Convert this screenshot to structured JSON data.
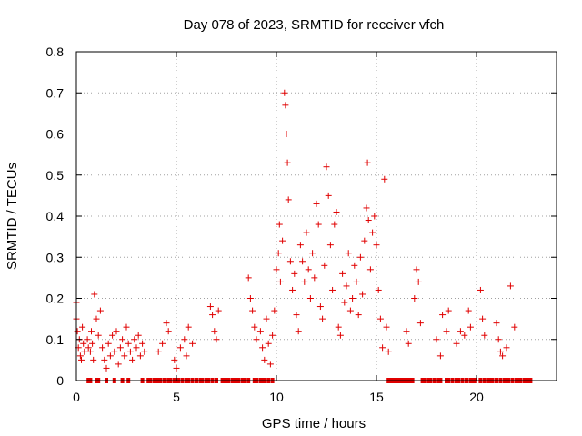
{
  "chart_data": {
    "type": "scatter",
    "title": "Day 078 of 2023, SRMTID for receiver vfch",
    "xlabel": "GPS time / hours",
    "ylabel": "SRMTID / TECUs",
    "xlim": [
      0,
      24
    ],
    "ylim": [
      0,
      0.8
    ],
    "xticks": [
      0,
      5,
      10,
      15,
      20
    ],
    "xtick_labels": [
      "0",
      "5",
      "10",
      "15",
      "20"
    ],
    "yticks": [
      0,
      0.1,
      0.2,
      0.3,
      0.4,
      0.5,
      0.6,
      0.7,
      0.8
    ],
    "ytick_labels": [
      "0",
      "0.1",
      "0.2",
      "0.3",
      "0.4",
      "0.5",
      "0.6",
      "0.7",
      "0.8"
    ],
    "grid": true,
    "marker": "+",
    "color": "#e00000",
    "series": [
      {
        "name": "SRMTID",
        "points": [
          [
            0.0,
            0.19
          ],
          [
            0.0,
            0.15
          ],
          [
            0.05,
            0.12
          ],
          [
            0.1,
            0.08
          ],
          [
            0.15,
            0.1
          ],
          [
            0.2,
            0.06
          ],
          [
            0.25,
            0.05
          ],
          [
            0.3,
            0.13
          ],
          [
            0.35,
            0.09
          ],
          [
            0.4,
            0.07
          ],
          [
            0.55,
            0.1
          ],
          [
            0.6,
            0.08
          ],
          [
            0.7,
            0.07
          ],
          [
            0.75,
            0.12
          ],
          [
            0.8,
            0.09
          ],
          [
            0.85,
            0.05
          ],
          [
            0.9,
            0.21
          ],
          [
            1.0,
            0.15
          ],
          [
            1.1,
            0.11
          ],
          [
            1.2,
            0.17
          ],
          [
            1.3,
            0.08
          ],
          [
            1.4,
            0.05
          ],
          [
            1.5,
            0.03
          ],
          [
            1.6,
            0.09
          ],
          [
            1.7,
            0.06
          ],
          [
            1.8,
            0.11
          ],
          [
            1.9,
            0.07
          ],
          [
            2.0,
            0.12
          ],
          [
            2.1,
            0.04
          ],
          [
            2.2,
            0.08
          ],
          [
            2.3,
            0.1
          ],
          [
            2.4,
            0.06
          ],
          [
            2.5,
            0.13
          ],
          [
            2.6,
            0.09
          ],
          [
            2.7,
            0.07
          ],
          [
            2.8,
            0.05
          ],
          [
            2.9,
            0.1
          ],
          [
            3.0,
            0.08
          ],
          [
            3.1,
            0.11
          ],
          [
            3.2,
            0.06
          ],
          [
            3.3,
            0.09
          ],
          [
            3.4,
            0.07
          ],
          [
            4.1,
            0.07
          ],
          [
            4.3,
            0.09
          ],
          [
            4.5,
            0.14
          ],
          [
            4.6,
            0.12
          ],
          [
            4.9,
            0.05
          ],
          [
            5.0,
            0.03
          ],
          [
            5.2,
            0.08
          ],
          [
            5.4,
            0.1
          ],
          [
            5.5,
            0.06
          ],
          [
            5.6,
            0.13
          ],
          [
            5.8,
            0.09
          ],
          [
            6.7,
            0.18
          ],
          [
            6.8,
            0.16
          ],
          [
            6.9,
            0.12
          ],
          [
            7.0,
            0.1
          ],
          [
            7.1,
            0.17
          ],
          [
            8.6,
            0.25
          ],
          [
            8.7,
            0.2
          ],
          [
            8.8,
            0.17
          ],
          [
            8.9,
            0.13
          ],
          [
            9.0,
            0.1
          ],
          [
            9.2,
            0.12
          ],
          [
            9.3,
            0.08
          ],
          [
            9.4,
            0.05
          ],
          [
            9.5,
            0.15
          ],
          [
            9.6,
            0.09
          ],
          [
            9.7,
            0.04
          ],
          [
            9.8,
            0.11
          ],
          [
            9.9,
            0.17
          ],
          [
            10.0,
            0.27
          ],
          [
            10.1,
            0.31
          ],
          [
            10.15,
            0.38
          ],
          [
            10.2,
            0.24
          ],
          [
            10.3,
            0.34
          ],
          [
            10.4,
            0.7
          ],
          [
            10.45,
            0.67
          ],
          [
            10.5,
            0.6
          ],
          [
            10.55,
            0.53
          ],
          [
            10.6,
            0.44
          ],
          [
            10.7,
            0.29
          ],
          [
            10.8,
            0.22
          ],
          [
            10.9,
            0.26
          ],
          [
            11.0,
            0.16
          ],
          [
            11.1,
            0.12
          ],
          [
            11.2,
            0.33
          ],
          [
            11.3,
            0.29
          ],
          [
            11.4,
            0.24
          ],
          [
            11.5,
            0.36
          ],
          [
            11.6,
            0.27
          ],
          [
            11.7,
            0.2
          ],
          [
            11.8,
            0.31
          ],
          [
            11.9,
            0.25
          ],
          [
            12.0,
            0.43
          ],
          [
            12.1,
            0.38
          ],
          [
            12.2,
            0.18
          ],
          [
            12.3,
            0.15
          ],
          [
            12.4,
            0.28
          ],
          [
            12.5,
            0.52
          ],
          [
            12.6,
            0.45
          ],
          [
            12.7,
            0.33
          ],
          [
            12.8,
            0.22
          ],
          [
            12.9,
            0.38
          ],
          [
            13.0,
            0.41
          ],
          [
            13.1,
            0.13
          ],
          [
            13.2,
            0.11
          ],
          [
            13.3,
            0.26
          ],
          [
            13.4,
            0.19
          ],
          [
            13.5,
            0.23
          ],
          [
            13.6,
            0.31
          ],
          [
            13.7,
            0.17
          ],
          [
            13.8,
            0.2
          ],
          [
            13.9,
            0.28
          ],
          [
            14.0,
            0.24
          ],
          [
            14.1,
            0.16
          ],
          [
            14.2,
            0.3
          ],
          [
            14.3,
            0.21
          ],
          [
            14.4,
            0.34
          ],
          [
            14.5,
            0.42
          ],
          [
            14.55,
            0.53
          ],
          [
            14.6,
            0.39
          ],
          [
            14.7,
            0.27
          ],
          [
            14.8,
            0.36
          ],
          [
            14.9,
            0.4
          ],
          [
            15.0,
            0.33
          ],
          [
            15.1,
            0.22
          ],
          [
            15.2,
            0.15
          ],
          [
            15.3,
            0.08
          ],
          [
            15.4,
            0.49
          ],
          [
            15.5,
            0.13
          ],
          [
            15.6,
            0.07
          ],
          [
            16.5,
            0.12
          ],
          [
            16.6,
            0.09
          ],
          [
            16.9,
            0.2
          ],
          [
            17.0,
            0.27
          ],
          [
            17.1,
            0.24
          ],
          [
            17.2,
            0.14
          ],
          [
            18.0,
            0.1
          ],
          [
            18.2,
            0.06
          ],
          [
            18.3,
            0.16
          ],
          [
            18.5,
            0.12
          ],
          [
            18.6,
            0.17
          ],
          [
            19.0,
            0.09
          ],
          [
            19.2,
            0.12
          ],
          [
            19.4,
            0.11
          ],
          [
            19.6,
            0.17
          ],
          [
            19.7,
            0.13
          ],
          [
            20.2,
            0.22
          ],
          [
            20.3,
            0.15
          ],
          [
            20.4,
            0.11
          ],
          [
            21.0,
            0.14
          ],
          [
            21.1,
            0.1
          ],
          [
            21.2,
            0.07
          ],
          [
            21.3,
            0.06
          ],
          [
            21.5,
            0.08
          ],
          [
            21.7,
            0.23
          ],
          [
            21.9,
            0.13
          ]
        ]
      }
    ],
    "zero_markers_x": [
      0.6,
      0.7,
      1.0,
      1.1,
      1.5,
      1.9,
      2.3,
      2.6,
      3.3,
      3.6,
      3.7,
      3.9,
      4.0,
      4.1,
      4.2,
      4.4,
      4.6,
      4.7,
      4.9,
      5.0,
      5.1,
      5.3,
      5.5,
      5.6,
      5.8,
      6.0,
      6.2,
      6.3,
      6.5,
      6.6,
      6.8,
      7.0,
      7.3,
      7.4,
      7.5,
      7.6,
      7.8,
      7.9,
      8.0,
      8.1,
      8.3,
      8.4,
      8.6,
      8.9,
      9.0,
      9.2,
      9.3,
      9.4,
      9.6,
      9.8,
      15.6,
      15.7,
      15.8,
      15.9,
      16.0,
      16.1,
      16.2,
      16.3,
      16.4,
      16.5,
      16.6,
      16.7,
      16.8,
      17.3,
      17.4,
      17.6,
      17.7,
      17.9,
      18.1,
      18.2,
      18.5,
      18.6,
      18.8,
      19.0,
      19.1,
      19.3,
      19.5,
      19.7,
      19.8,
      19.9,
      20.2,
      20.4,
      20.6,
      20.7,
      20.8,
      21.0,
      21.2,
      21.4,
      21.5,
      21.6,
      21.8,
      22.0,
      22.1,
      22.2,
      22.4,
      22.5,
      22.6,
      22.7
    ]
  }
}
